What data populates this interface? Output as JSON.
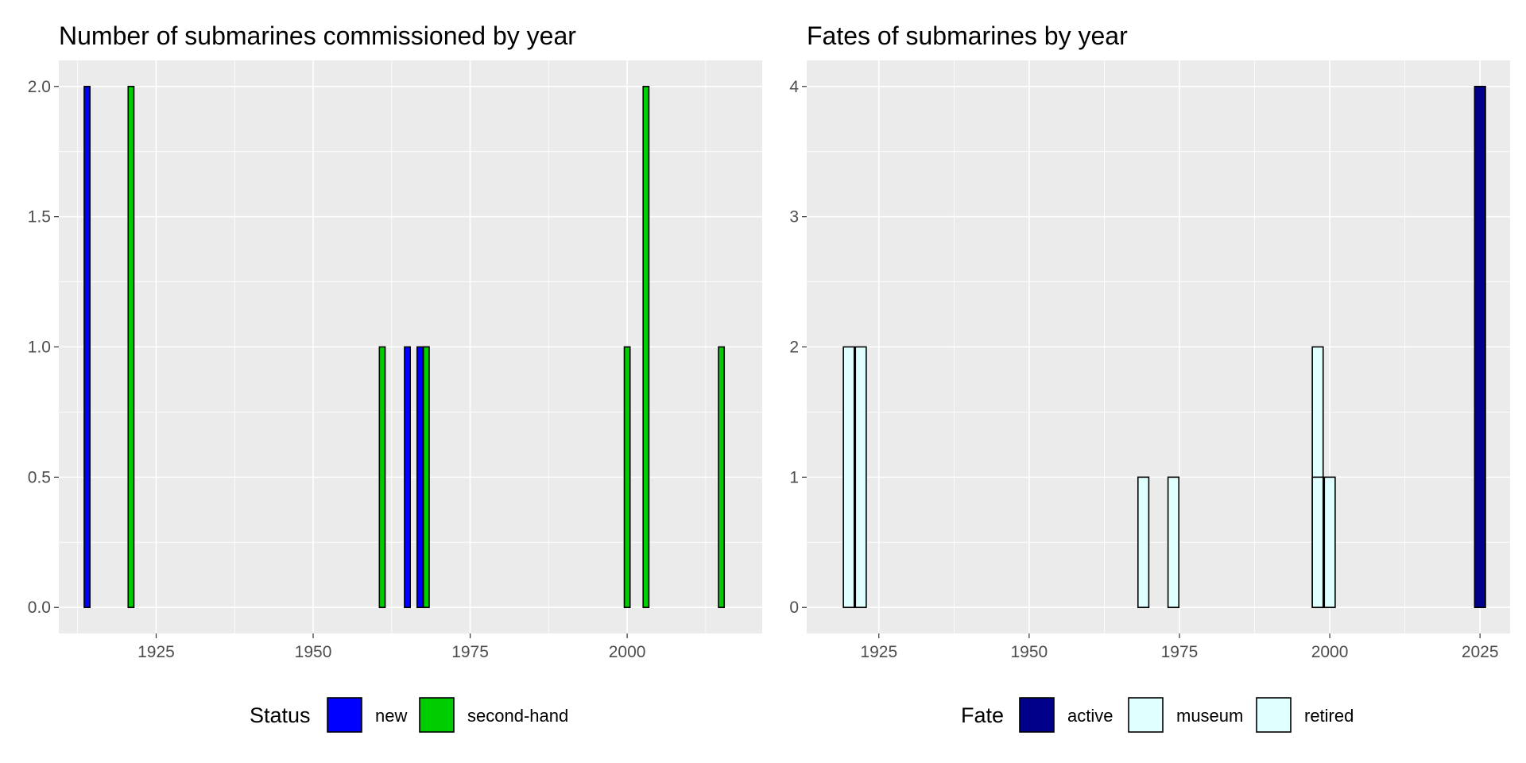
{
  "chart_data": [
    {
      "type": "bar",
      "title": "Number of submarines commissioned by year",
      "xlabel": "",
      "ylabel": "",
      "xlim": [
        1909.5,
        2021.5
      ],
      "ylim": [
        -0.1,
        2.1
      ],
      "x_ticks": [
        1925,
        1950,
        1975,
        2000
      ],
      "y_ticks": [
        0.0,
        0.5,
        1.0,
        1.5,
        2.0
      ],
      "y_tick_labels": [
        "0.0",
        "0.5",
        "1.0",
        "1.5",
        "2.0"
      ],
      "grid": true,
      "legend_position": "bottom",
      "legend": {
        "title": "Status",
        "entries": [
          {
            "label": "new",
            "color": "#0000ff"
          },
          {
            "label": "second-hand",
            "color": "#00cd00"
          }
        ]
      },
      "series": [
        {
          "name": "new",
          "color": "#0000ff",
          "x": [
            1914,
            1965,
            1967,
            1968
          ],
          "values": [
            2,
            1,
            1,
            1
          ]
        },
        {
          "name": "second-hand",
          "color": "#00cd00",
          "x": [
            1921,
            1961,
            1968,
            2000,
            2003,
            2015
          ],
          "values": [
            2,
            1,
            1,
            1,
            2,
            1
          ]
        }
      ]
    },
    {
      "type": "bar",
      "title": "Fates of submarines by year",
      "xlabel": "",
      "ylabel": "",
      "xlim": [
        1913,
        2030
      ],
      "ylim": [
        -0.2,
        4.2
      ],
      "x_ticks": [
        1925,
        1950,
        1975,
        2000,
        2025
      ],
      "y_ticks": [
        0,
        1,
        2,
        3,
        4
      ],
      "y_tick_labels": [
        "0",
        "1",
        "2",
        "3",
        "4"
      ],
      "grid": true,
      "legend_position": "bottom",
      "legend": {
        "title": "Fate",
        "entries": [
          {
            "label": "active",
            "color": "#00008b"
          },
          {
            "label": "museum",
            "color": "#e0ffff"
          },
          {
            "label": "retired",
            "color": "#e0ffff"
          }
        ]
      },
      "series": [
        {
          "name": "fate",
          "x": [
            1920,
            1922,
            1969,
            1974,
            1998,
            1998,
            2000,
            2025
          ],
          "values": [
            2,
            2,
            1,
            1,
            2,
            1,
            1,
            4
          ],
          "colors": [
            "#e0ffff",
            "#e0ffff",
            "#e0ffff",
            "#e0ffff",
            "#e0ffff",
            "#e0ffff",
            "#e0ffff",
            "#00008b"
          ]
        }
      ]
    }
  ]
}
